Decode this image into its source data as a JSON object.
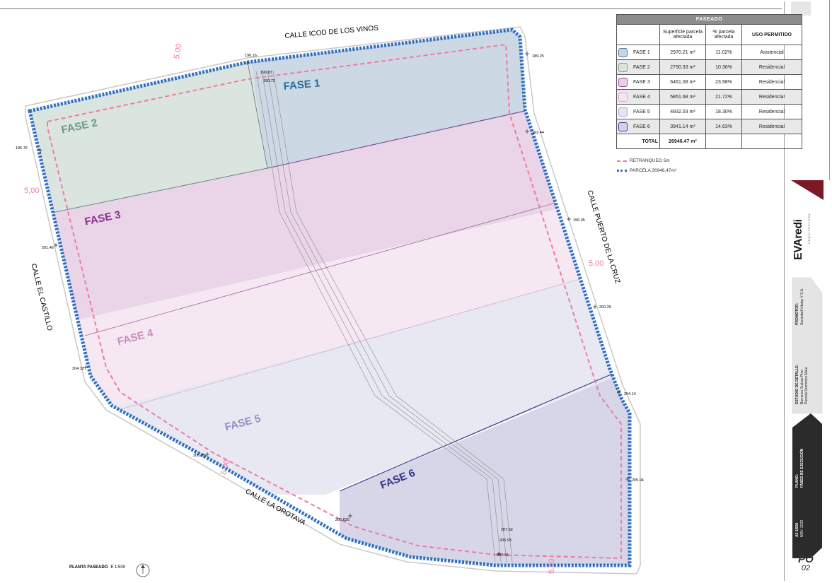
{
  "streets": {
    "north": "CALLE ICOD DE LOS VINOS",
    "east": "CALLE  PUERTO DE LA CRUZ",
    "west": "CALLE EL CASTILLO",
    "south": "CALLE  LA OROTAVA"
  },
  "phases": [
    {
      "label": "FASE 1",
      "fill": "#c6d4e1",
      "stroke": "#4f7fa6",
      "text_color": "#2f6b99"
    },
    {
      "label": "FASE 2",
      "fill": "#d6e2dc",
      "stroke": "#7e9f8f",
      "text_color": "#6f9584"
    },
    {
      "label": "FASE 3",
      "fill": "#e7cfe5",
      "stroke": "#a04aa0",
      "text_color": "#8e2f8f"
    },
    {
      "label": "FASE 4",
      "fill": "#f4e6f1",
      "stroke": "#d9a6cc",
      "text_color": "#c98bbc"
    },
    {
      "label": "FASE 5",
      "fill": "#e5e5f1",
      "stroke": "#a6a6cf",
      "text_color": "#8f8fc7"
    },
    {
      "label": "FASE 6",
      "fill": "#d2d2e6",
      "stroke": "#3d3d8f",
      "text_color": "#33338a"
    }
  ],
  "setback_labels": [
    "5.00",
    "5,00",
    "5,00",
    "5.00",
    "5.00"
  ],
  "elevations": [
    "196.16",
    "190.87",
    "190.72",
    "189.25",
    "196.76",
    "192.44",
    "196.35",
    "201.46",
    "200.26",
    "204.32",
    "204.14",
    "206.35",
    "205.04",
    "206.625",
    "207.62",
    "205.03",
    "207.95"
  ],
  "table": {
    "title": "FASEADO",
    "col_surface": "Superficie parcela afectada",
    "col_percent": "% parcela afectada",
    "col_use": "USO PERMITIDO",
    "rows": [
      {
        "phase": "FASE 1",
        "surface": "2970.21 m²",
        "percent": "11.02%",
        "use": "Asistencial"
      },
      {
        "phase": "FASE 2",
        "surface": "2790.33 m²",
        "percent": "10.36%",
        "use": "Residencial"
      },
      {
        "phase": "FASE 3",
        "surface": "6461.08 m²",
        "percent": "23.98%",
        "use": "Residencial"
      },
      {
        "phase": "FASE 4",
        "surface": "5851.68 m²",
        "percent": "21.72%",
        "use": "Residencial"
      },
      {
        "phase": "FASE 5",
        "surface": "4932.03 m²",
        "percent": "18.30%",
        "use": "Residencial"
      },
      {
        "phase": "FASE 6",
        "surface": "3941.14 m²",
        "percent": "14.63%",
        "use": "Residencial"
      }
    ],
    "total_label": "TOTAL",
    "total_value": "26946.47 m²"
  },
  "legend": {
    "setback": "RETRANQUEO 5m",
    "parcel": "PARCELA 26946,47m²",
    "setback_color": "#f07aa0",
    "parcel_color": "#2f6fc4"
  },
  "plan_title": "PLANTA FASEADO",
  "plan_scale": "E 1:500",
  "brand": "EVAredi",
  "brand_sub": "ARQUITECTURA",
  "title_block": {
    "promotor_label": "PROMOTOR:",
    "promotor_value": "Sociedad Vitalay Y S.A.",
    "estudio_label": "ESTUDIO DE DETALLE:",
    "estudio_value": "Barranco Suárez Pino Parcela Dominicis Maía",
    "plano_label": "PLANO:",
    "plano_value": "FASES DE EJECUCIÓN",
    "scale": "A3 1/500",
    "date": "NOV. 2022",
    "code": "PO",
    "number": "02"
  }
}
